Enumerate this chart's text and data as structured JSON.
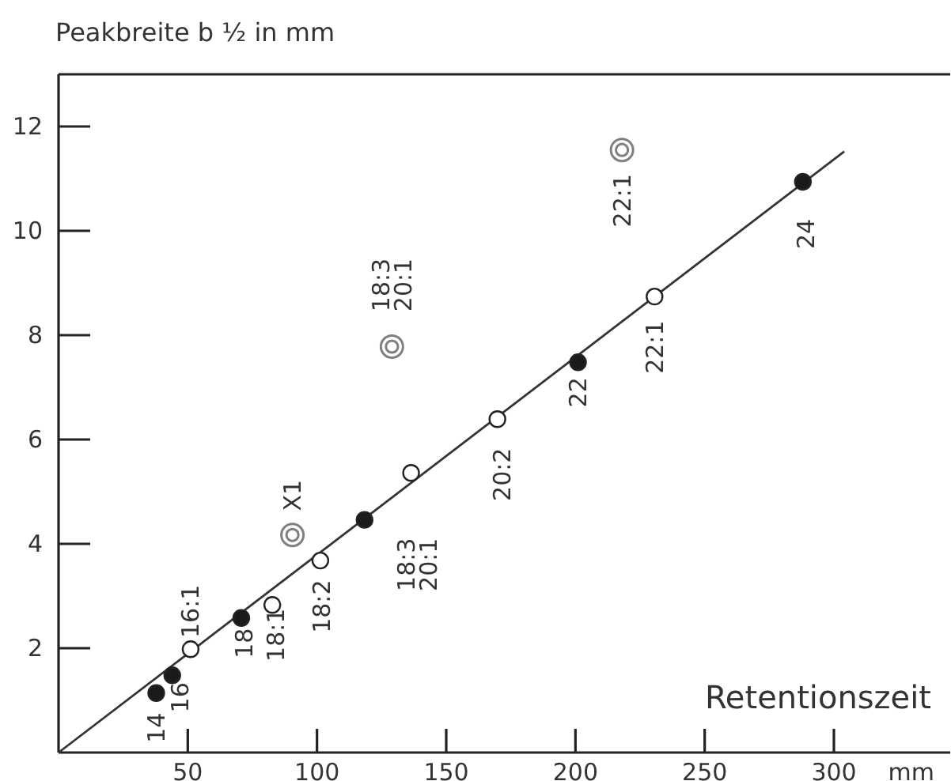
{
  "chart_data": {
    "type": "scatter",
    "ylabel": "Peakbreite b ½ in mm",
    "xlabel": "Retentionszeit",
    "xlim": [
      0,
      345
    ],
    "ylim": [
      0,
      13
    ],
    "xticks": [
      50,
      100,
      150,
      200,
      250,
      300
    ],
    "yticks": [
      2,
      4,
      6,
      8,
      10,
      12
    ],
    "grid": false,
    "series": [
      {
        "marker": "circle",
        "color": "#1a1a1a",
        "x": [
          37.8,
          44,
          70.7,
          118.4,
          201,
          288
        ],
        "values": [
          1.14,
          1.48,
          2.58,
          4.46,
          7.48,
          10.94
        ]
      },
      {
        "marker": "circle",
        "color": "#ffffff",
        "x": [
          51.1,
          82.7,
          101.3,
          136.4,
          169.8,
          230.6
        ],
        "values": [
          1.98,
          2.83,
          3.68,
          5.36,
          6.39,
          8.74
        ]
      },
      {
        "marker": "circle",
        "color": "#808080",
        "x": [
          90.5,
          129,
          218
        ],
        "values": [
          4.17,
          7.78,
          11.55
        ]
      },
      {
        "type": "line",
        "marker": "none",
        "color": "#333333",
        "x": [
          0,
          304
        ],
        "values": [
          0,
          11.52
        ]
      }
    ],
    "annotations": [
      {
        "text": "14",
        "x": 37.8,
        "y": 1.14
      },
      {
        "text": "16",
        "x": 44,
        "y": 1.48
      },
      {
        "text": "16:1",
        "x": 51.1,
        "y": 1.98
      },
      {
        "text": "18",
        "x": 70.7,
        "y": 2.58
      },
      {
        "text": "18:1",
        "x": 82.7,
        "y": 2.83
      },
      {
        "text": "X1",
        "x": 90.5,
        "y": 4.17
      },
      {
        "text": "18:2",
        "x": 101.3,
        "y": 3.68
      },
      {
        "text": "18:3\n20:1",
        "x": 136.4,
        "y": 5.36
      },
      {
        "text": "18:3\n20:1",
        "x": 129,
        "y": 7.78
      },
      {
        "text": "20:2",
        "x": 169.8,
        "y": 6.39
      },
      {
        "text": "22",
        "x": 201,
        "y": 7.48
      },
      {
        "text": "22:1",
        "x": 230.6,
        "y": 8.74
      },
      {
        "text": "22:1",
        "x": 218,
        "y": 11.55
      },
      {
        "text": "24",
        "x": 288,
        "y": 10.94
      },
      "mm"
    ]
  }
}
